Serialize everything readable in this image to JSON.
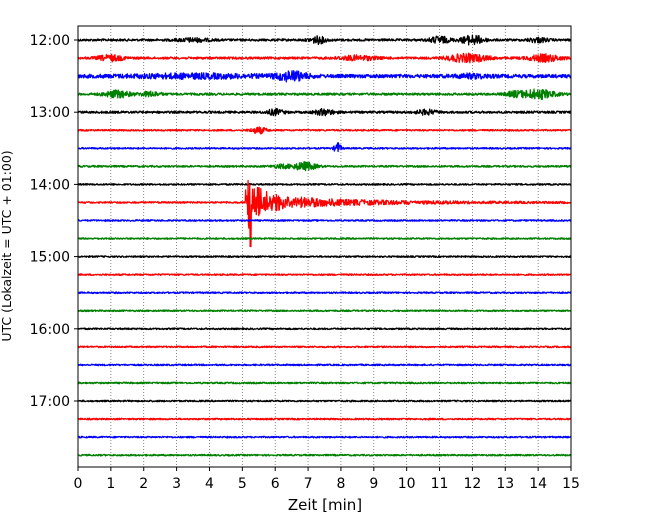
{
  "chart_data": {
    "type": "line",
    "title": "",
    "xlabel": "Zeit  [min]",
    "ylabel": "UTC (Lokalzeit = UTC + 01:00)",
    "xlim": [
      0,
      15
    ],
    "x_ticks": [
      "0",
      "1",
      "2",
      "3",
      "4",
      "5",
      "6",
      "7",
      "8",
      "9",
      "10",
      "11",
      "12",
      "13",
      "14",
      "15"
    ],
    "y_tick_labels": [
      "12:00",
      "13:00",
      "14:00",
      "15:00",
      "16:00",
      "17:00"
    ],
    "grid": "vertical dotted at each minute",
    "trace_interval_minutes": 15,
    "color_cycle": [
      "#000000",
      "#ff0000",
      "#0000ff",
      "#008000"
    ],
    "traces": [
      {
        "start": "12:00",
        "activity": "bursts near 7, 10.5-12, 14 min"
      },
      {
        "start": "12:15",
        "activity": "bursts near 0.8-1.3, 8-9, 11.5-12.5, 13.5-14.5 min"
      },
      {
        "start": "12:30",
        "activity": "elevated noise 1-7 min, peak near 6.5 min"
      },
      {
        "start": "12:45",
        "activity": "bursts near 1, 13.5-14.5 min"
      },
      {
        "start": "13:00",
        "activity": "bursts near 6, 7.5, 10.5 min"
      },
      {
        "start": "13:15",
        "activity": "small event near 5.2-5.7 min"
      },
      {
        "start": "13:30",
        "activity": "local event near 7.9 min"
      },
      {
        "start": "13:45",
        "activity": "burst near 6-7 min"
      },
      {
        "start": "14:00",
        "activity": "low noise"
      },
      {
        "start": "14:15",
        "activity": "earthquake onset at 5.1 min, coda decaying to ~12 min"
      },
      {
        "start": "14:30",
        "activity": "low noise"
      },
      {
        "start": "14:45",
        "activity": "low noise"
      },
      {
        "start": "15:00",
        "activity": "low noise"
      },
      {
        "start": "15:15",
        "activity": "low noise"
      },
      {
        "start": "15:30",
        "activity": "low noise"
      },
      {
        "start": "15:45",
        "activity": "low noise"
      },
      {
        "start": "16:00",
        "activity": "low noise"
      },
      {
        "start": "16:15",
        "activity": "low noise"
      },
      {
        "start": "16:30",
        "activity": "low noise"
      },
      {
        "start": "16:45",
        "activity": "low noise"
      },
      {
        "start": "17:00",
        "activity": "low noise"
      },
      {
        "start": "17:15",
        "activity": "low noise"
      },
      {
        "start": "17:30",
        "activity": "low noise"
      },
      {
        "start": "17:45",
        "activity": "low noise"
      }
    ]
  }
}
